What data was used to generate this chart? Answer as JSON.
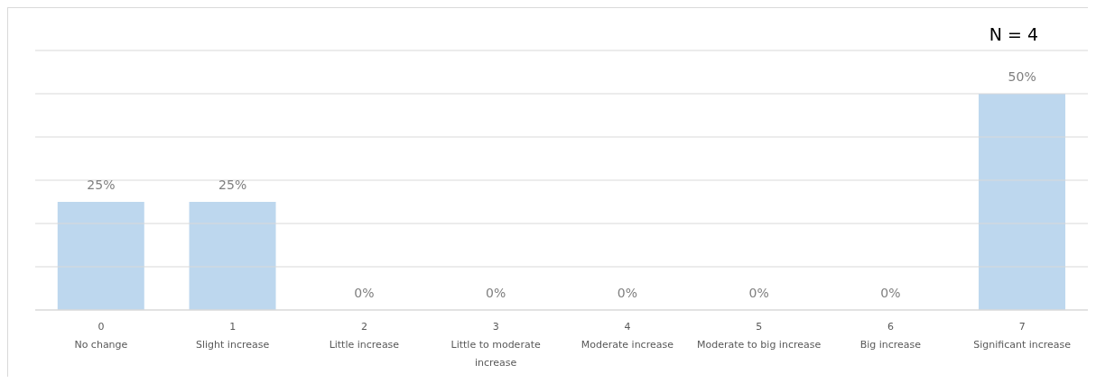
{
  "chart_data": {
    "type": "bar",
    "categories": [
      "0\nNo change",
      "1\nSlight increase",
      "2\nLittle increase",
      "3\nLittle to moderate increase",
      "4\nModerate increase",
      "5\nModerate to big increase",
      "6\nBig increase",
      "7\nSignificant increase"
    ],
    "values": [
      25,
      25,
      0,
      0,
      0,
      0,
      0,
      50
    ],
    "value_labels": [
      "25%",
      "25%",
      "0%",
      "0%",
      "0%",
      "0%",
      "0%",
      "50%"
    ],
    "color": "#bdd7ee",
    "ylim": [
      0,
      60
    ],
    "yticks": [
      {
        "value": 0,
        "label": null
      },
      {
        "value": 10,
        "label": null
      },
      {
        "value": 20,
        "label": null
      },
      {
        "value": 30,
        "label": null
      },
      {
        "value": 40,
        "label": null
      },
      {
        "value": 50,
        "label": null
      },
      {
        "value": 60,
        "label": null
      }
    ],
    "tick_labels": "x",
    "grid": "y",
    "legend": false,
    "annotations": [
      "N = 4"
    ]
  }
}
